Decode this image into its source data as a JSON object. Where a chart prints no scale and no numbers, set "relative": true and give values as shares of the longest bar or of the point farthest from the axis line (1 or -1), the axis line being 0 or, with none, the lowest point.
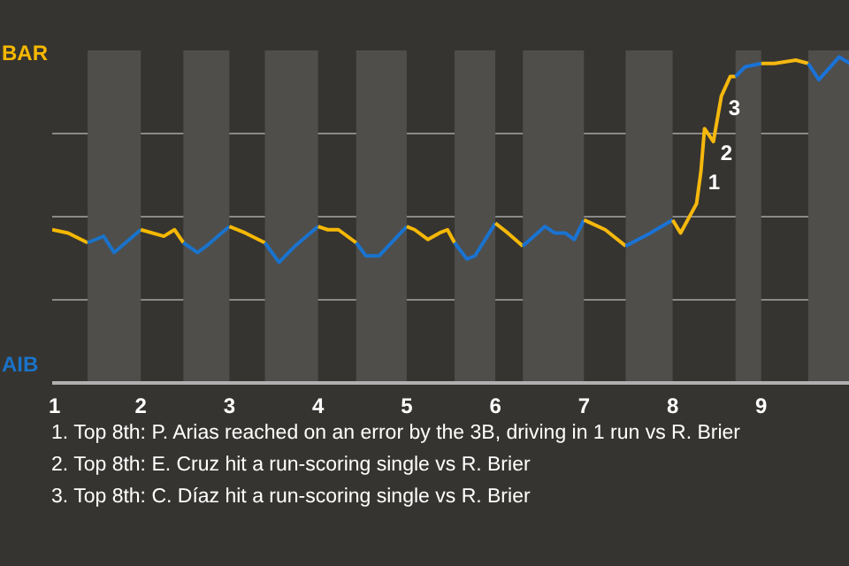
{
  "chart_data": {
    "type": "line",
    "relative": true,
    "xlim": [
      1,
      10
    ],
    "xticks": [
      1,
      2,
      3,
      4,
      5,
      6,
      7,
      8,
      9
    ],
    "grid": "y",
    "series": [
      {
        "name": "BAR",
        "color": "#f5b800",
        "x": [
          1.0,
          1.18,
          1.4
        ],
        "values": [
          0.47,
          0.46,
          0.43
        ]
      },
      {
        "name": "AIB",
        "color": "#1a73c8",
        "x": [
          1.4,
          1.58,
          1.7,
          2.0
        ],
        "values": [
          0.43,
          0.45,
          0.4,
          0.47
        ]
      },
      {
        "color": "#f5b802",
        "x": [
          2.0,
          2.26,
          2.38,
          2.48
        ],
        "values": [
          0.47,
          0.45,
          0.47,
          0.43
        ]
      },
      {
        "color": "#1a73ca",
        "x": [
          2.48,
          2.64,
          2.74,
          3.0
        ],
        "values": [
          0.43,
          0.4,
          0.42,
          0.48
        ]
      },
      {
        "color": "#f5b804",
        "x": [
          3.0,
          3.18,
          3.4
        ],
        "values": [
          0.48,
          0.46,
          0.43
        ]
      },
      {
        "color": "#1a73cc",
        "x": [
          3.4,
          3.56,
          3.74,
          4.0
        ],
        "values": [
          0.43,
          0.37,
          0.42,
          0.48
        ]
      },
      {
        "color": "#f5b806",
        "x": [
          4.0,
          4.11,
          4.23,
          4.43
        ],
        "values": [
          0.48,
          0.47,
          0.47,
          0.43
        ]
      },
      {
        "color": "#1a73ce",
        "x": [
          4.43,
          4.54,
          4.69,
          5.0
        ],
        "values": [
          0.43,
          0.39,
          0.39,
          0.48
        ]
      },
      {
        "color": "#f5b808",
        "x": [
          5.0,
          5.09,
          5.24,
          5.37,
          5.46,
          5.54
        ],
        "values": [
          0.48,
          0.47,
          0.44,
          0.46,
          0.47,
          0.43
        ]
      },
      {
        "color": "#1a73d0",
        "x": [
          5.54,
          5.68,
          5.77,
          6.0
        ],
        "values": [
          0.43,
          0.38,
          0.39,
          0.49
        ]
      },
      {
        "color": "#f5b80a",
        "x": [
          6.0,
          6.14,
          6.31
        ],
        "values": [
          0.49,
          0.46,
          0.42
        ]
      },
      {
        "color": "#1a73d2",
        "x": [
          6.31,
          6.56,
          6.67,
          6.79,
          6.89,
          7.0
        ],
        "values": [
          0.42,
          0.48,
          0.46,
          0.46,
          0.44,
          0.5
        ]
      },
      {
        "color": "#f5b80c",
        "x": [
          7.0,
          7.24,
          7.47
        ],
        "values": [
          0.5,
          0.47,
          0.42
        ]
      },
      {
        "color": "#1a73d4",
        "x": [
          7.47,
          7.75,
          8.0
        ],
        "values": [
          0.42,
          0.46,
          0.5
        ]
      },
      {
        "color": "#f5b80e",
        "x": [
          8.0,
          8.09,
          8.27,
          8.32,
          8.36,
          8.46,
          8.55,
          8.65,
          8.71
        ],
        "values": [
          0.5,
          0.46,
          0.55,
          0.65,
          0.78,
          0.74,
          0.88,
          0.94,
          0.94
        ]
      },
      {
        "color": "#1a73d6",
        "x": [
          8.71,
          8.82,
          9.0
        ],
        "values": [
          0.94,
          0.97,
          0.98
        ]
      },
      {
        "color": "#f5b810",
        "x": [
          9.0,
          9.15,
          9.39,
          9.53
        ],
        "values": [
          0.98,
          0.98,
          0.99,
          0.98
        ]
      },
      {
        "color": "#1a73d8",
        "x": [
          9.53,
          9.65,
          9.88,
          10.0
        ],
        "values": [
          0.98,
          0.93,
          1.0,
          0.98
        ]
      }
    ],
    "bands": [
      {
        "axis": "x",
        "from": 1.4,
        "to": 2,
        "color": "#4f4e4b"
      },
      {
        "axis": "x",
        "from": 2.48,
        "to": 3,
        "color": "#4f4e4b"
      },
      {
        "axis": "x",
        "from": 3.4,
        "to": 4,
        "color": "#4f4e4b"
      },
      {
        "axis": "x",
        "from": 4.43,
        "to": 5,
        "color": "#4f4e4b"
      },
      {
        "axis": "x",
        "from": 5.54,
        "to": 6,
        "color": "#4f4e4b"
      },
      {
        "axis": "x",
        "from": 6.31,
        "to": 7,
        "color": "#4f4e4b"
      },
      {
        "axis": "x",
        "from": 7.47,
        "to": 8,
        "color": "#4f4e4b"
      },
      {
        "axis": "x",
        "from": 8.71,
        "to": 9,
        "color": "#4f4e4b"
      },
      {
        "axis": "x",
        "from": 9.53,
        "to": 10,
        "color": "#4f4e4b"
      }
    ],
    "annotations": [
      {
        "text": "1",
        "x": 8.32,
        "y": 0.65
      },
      {
        "text": "2",
        "x": 8.46,
        "y": 0.74
      },
      {
        "text": "3",
        "x": 8.55,
        "y": 0.88
      },
      "1. Top 8th: P. Arias reached on an error by the 3B, driving in 1 run vs R. Brier",
      "2. Top 8th: E. Cruz hit a run-scoring single vs R. Brier",
      "3. Top 8th: C. Díaz hit a run-scoring single vs R. Brier"
    ]
  }
}
